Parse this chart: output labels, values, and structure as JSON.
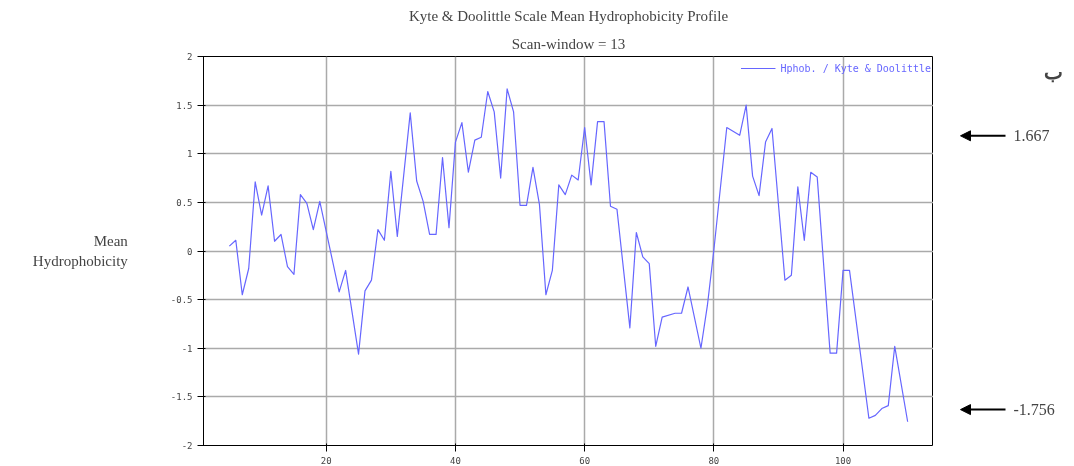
{
  "chart_data": {
    "type": "line",
    "title": "Kyte & Doolittle Scale Mean Hydrophobicity Profile",
    "subtitle": "Scan-window = 13",
    "ylabel": "Mean Hydrophobicity",
    "x": [
      5,
      6,
      7,
      8,
      9,
      10,
      11,
      12,
      13,
      14,
      15,
      16,
      17,
      18,
      19,
      22,
      23,
      25,
      26,
      27,
      28,
      29,
      30,
      31,
      33,
      34,
      35,
      36,
      37,
      38,
      39,
      40,
      41,
      42,
      43,
      44,
      45,
      46,
      47,
      48,
      49,
      50,
      51,
      52,
      53,
      54,
      55,
      56,
      57,
      58,
      59,
      60,
      61,
      62,
      63,
      64,
      65,
      67,
      68,
      69,
      70,
      71,
      72,
      74,
      75,
      76,
      78,
      79,
      80,
      82,
      84,
      85,
      86,
      87,
      88,
      89,
      91,
      92,
      93,
      94,
      95,
      96,
      98,
      99,
      100,
      101,
      104,
      105,
      106,
      107,
      108,
      110
    ],
    "series": [
      {
        "name": "Hphob. / Kyte & Doolittle",
        "color": "#6666ff",
        "values": [
          0.05,
          0.11,
          -0.45,
          -0.18,
          0.71,
          0.37,
          0.67,
          0.1,
          0.17,
          -0.16,
          -0.24,
          0.58,
          0.49,
          0.22,
          0.51,
          -0.42,
          -0.2,
          -1.06,
          -0.41,
          -0.3,
          0.22,
          0.11,
          0.82,
          0.15,
          1.42,
          0.72,
          0.51,
          0.17,
          0.17,
          0.96,
          0.24,
          1.12,
          1.32,
          0.81,
          1.14,
          1.17,
          1.64,
          1.43,
          0.75,
          1.667,
          1.43,
          0.47,
          0.47,
          0.86,
          0.48,
          -0.45,
          -0.2,
          0.68,
          0.58,
          0.78,
          0.73,
          1.27,
          0.68,
          1.33,
          1.33,
          0.46,
          0.43,
          -0.79,
          0.19,
          -0.06,
          -0.13,
          -0.98,
          -0.68,
          -0.64,
          -0.64,
          -0.37,
          -1.0,
          -0.56,
          0.01,
          1.27,
          1.19,
          1.5,
          0.77,
          0.57,
          1.12,
          1.26,
          -0.3,
          -0.25,
          0.66,
          0.11,
          0.81,
          0.76,
          -1.05,
          -1.05,
          -0.2,
          -0.2,
          -1.72,
          -1.69,
          -1.62,
          -1.59,
          -0.98,
          -1.756
        ]
      }
    ],
    "xlim": [
      1,
      114
    ],
    "ylim": [
      -2,
      2
    ],
    "xticks": [
      20,
      40,
      60,
      80,
      100
    ],
    "yticks": [
      -2,
      -1.5,
      -1,
      -0.5,
      0,
      0.5,
      1,
      1.5,
      2
    ],
    "grid": true,
    "legend": "top right",
    "annotations": [
      "ب",
      "1.667",
      "-1.756"
    ]
  }
}
